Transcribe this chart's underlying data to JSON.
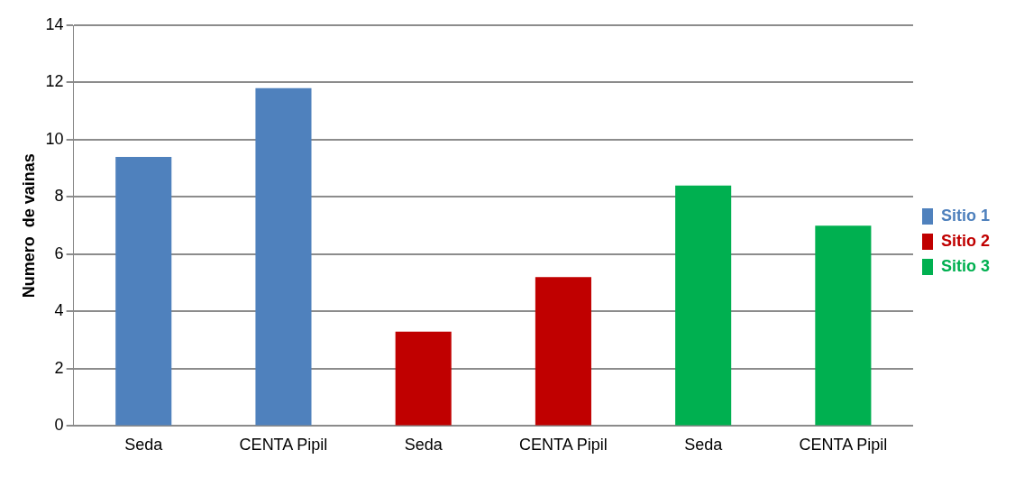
{
  "chart_data": {
    "type": "bar",
    "ylabel": "Numero  de vainas",
    "categories": [
      "Seda",
      "CENTA Pipil",
      "Seda",
      "CENTA Pipil",
      "Seda",
      "CENTA Pipil"
    ],
    "series": [
      {
        "name": "Sitio 1",
        "color": "#4f81bd",
        "values": [
          9.4,
          11.8,
          null,
          null,
          null,
          null
        ]
      },
      {
        "name": "Sitio 2",
        "color": "#c00000",
        "values": [
          null,
          null,
          3.3,
          5.2,
          null,
          null
        ]
      },
      {
        "name": "Sitio 3",
        "color": "#00b050",
        "values": [
          null,
          null,
          null,
          null,
          8.4,
          7.0
        ]
      }
    ],
    "ylim": [
      0,
      14
    ],
    "yticks": [
      0,
      2,
      4,
      6,
      8,
      10,
      12,
      14
    ],
    "grid": "y",
    "legend": "right"
  }
}
